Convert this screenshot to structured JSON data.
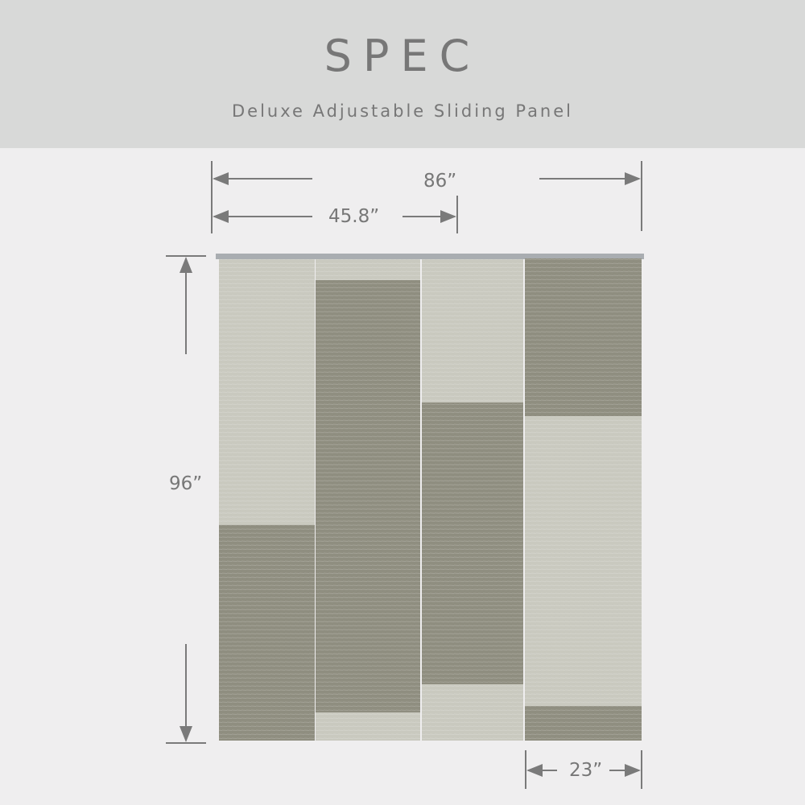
{
  "header": {
    "title": "SPEC",
    "subtitle": "Deluxe Adjustable Sliding Panel"
  },
  "dimensions": {
    "total_width": "86”",
    "track_width": "45.8”",
    "height": "96”",
    "panel_width": "23”"
  },
  "colors": {
    "light_fabric": "#c9c9bf",
    "dark_fabric": "#8f8e80",
    "rail": "#a9adb1",
    "dimension_line": "#7a7a7a"
  }
}
